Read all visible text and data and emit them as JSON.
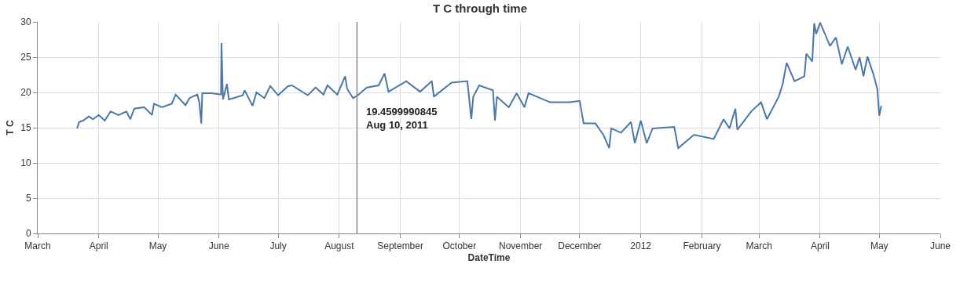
{
  "chart_data": {
    "type": "line",
    "title": "T C through time",
    "xlabel": "DateTime",
    "ylabel": "T C",
    "x": [
      "2011-03-21",
      "2011-03-22",
      "2011-03-24",
      "2011-03-27",
      "2011-03-29",
      "2011-04-01",
      "2011-04-04",
      "2011-04-07",
      "2011-04-11",
      "2011-04-15",
      "2011-04-17",
      "2011-04-19",
      "2011-04-24",
      "2011-04-28",
      "2011-04-29",
      "2011-05-03",
      "2011-05-08",
      "2011-05-10",
      "2011-05-15",
      "2011-05-17",
      "2011-05-21",
      "2011-05-22",
      "2011-05-23",
      "2011-05-23T12:00",
      "2011-05-28",
      "2011-06-02",
      "2011-06-02T06:00",
      "2011-06-03",
      "2011-06-05",
      "2011-06-06",
      "2011-06-13",
      "2011-06-14",
      "2011-06-18",
      "2011-06-20",
      "2011-06-24",
      "2011-06-27",
      "2011-07-01",
      "2011-07-06",
      "2011-07-08",
      "2011-07-16",
      "2011-07-20",
      "2011-07-24",
      "2011-07-26",
      "2011-07-31",
      "2011-08-04",
      "2011-08-05",
      "2011-08-08",
      "2011-08-10",
      "2011-08-15",
      "2011-08-21",
      "2011-08-24",
      "2011-08-26",
      "2011-09-04",
      "2011-09-11",
      "2011-09-17",
      "2011-09-18",
      "2011-09-27",
      "2011-10-05",
      "2011-10-07",
      "2011-10-08",
      "2011-10-11",
      "2011-10-18",
      "2011-10-19",
      "2011-10-20",
      "2011-10-26",
      "2011-10-30",
      "2011-11-03",
      "2011-11-05",
      "2011-11-16",
      "2011-11-26",
      "2011-12-01",
      "2011-12-03",
      "2011-12-09",
      "2011-12-13",
      "2011-12-16",
      "2011-12-17",
      "2011-12-22",
      "2011-12-27",
      "2011-12-29",
      "2012-01-01",
      "2012-01-04",
      "2012-01-07",
      "2012-01-18",
      "2012-01-20",
      "2012-01-28",
      "2012-02-07",
      "2012-02-12",
      "2012-02-15",
      "2012-02-18",
      "2012-02-19",
      "2012-02-26",
      "2012-03-02",
      "2012-03-05",
      "2012-03-11",
      "2012-03-13",
      "2012-03-15",
      "2012-03-19",
      "2012-03-24",
      "2012-03-25",
      "2012-03-28",
      "2012-03-29",
      "2012-03-30",
      "2012-04-01",
      "2012-04-06",
      "2012-04-09",
      "2012-04-12",
      "2012-04-15",
      "2012-04-19",
      "2012-04-21",
      "2012-04-23",
      "2012-04-25",
      "2012-04-28",
      "2012-04-30",
      "2012-05-01",
      "2012-05-02"
    ],
    "values": [
      14.9,
      15.8,
      16.0,
      16.6,
      16.2,
      16.8,
      16.0,
      17.3,
      16.8,
      17.3,
      16.2,
      17.7,
      17.9,
      16.8,
      18.4,
      17.9,
      18.4,
      19.7,
      18.2,
      19.2,
      19.7,
      18.6,
      15.6,
      19.9,
      19.9,
      19.7,
      27.0,
      19.0,
      21.2,
      19.0,
      19.6,
      20.3,
      18.1,
      20.0,
      19.2,
      20.9,
      19.6,
      20.9,
      21.0,
      19.6,
      20.7,
      19.7,
      21.0,
      19.7,
      22.3,
      20.5,
      19.2,
      19.5,
      20.7,
      21.0,
      22.7,
      20.1,
      21.6,
      20.1,
      21.6,
      19.4,
      21.4,
      21.6,
      16.2,
      19.4,
      21.0,
      20.3,
      16.0,
      19.4,
      17.9,
      19.9,
      17.9,
      19.9,
      18.6,
      18.6,
      18.8,
      15.6,
      15.6,
      14.0,
      12.1,
      14.9,
      14.3,
      15.8,
      12.8,
      16.0,
      12.8,
      14.9,
      15.1,
      12.1,
      14.0,
      13.4,
      16.2,
      14.9,
      17.7,
      14.7,
      17.3,
      18.6,
      16.2,
      19.4,
      21.2,
      24.2,
      21.6,
      22.3,
      25.5,
      24.4,
      29.8,
      28.3,
      29.9,
      26.6,
      27.8,
      24.0,
      26.5,
      23.2,
      25.0,
      22.3,
      25.1,
      22.6,
      20.5,
      16.7,
      18.1
    ],
    "color": "#4c78a8",
    "xlim": [
      "2011-03-01",
      "2012-06-01"
    ],
    "xticks": [
      {
        "value": "2011-03-01",
        "label": "March"
      },
      {
        "value": "2011-04-01",
        "label": "April"
      },
      {
        "value": "2011-05-01",
        "label": "May"
      },
      {
        "value": "2011-06-01",
        "label": "June"
      },
      {
        "value": "2011-07-01",
        "label": "July"
      },
      {
        "value": "2011-08-01",
        "label": "August"
      },
      {
        "value": "2011-09-01",
        "label": "September"
      },
      {
        "value": "2011-10-01",
        "label": "October"
      },
      {
        "value": "2011-11-01",
        "label": "November"
      },
      {
        "value": "2011-12-01",
        "label": "December"
      },
      {
        "value": "2012-01-01",
        "label": "2012"
      },
      {
        "value": "2012-02-01",
        "label": "February"
      },
      {
        "value": "2012-03-01",
        "label": "March"
      },
      {
        "value": "2012-04-01",
        "label": "April"
      },
      {
        "value": "2012-05-01",
        "label": "May"
      },
      {
        "value": "2012-06-01",
        "label": "June"
      }
    ],
    "ylim": [
      0,
      30
    ],
    "yticks": [
      0,
      5,
      10,
      15,
      20,
      25,
      30
    ],
    "grid": true,
    "line_style": "solid",
    "ref_lines": [
      {
        "axis": "x",
        "value": "2011-08-10",
        "color": "#888888"
      }
    ],
    "annotations": [
      {
        "text": "19.4599990845\nAug 10, 2011",
        "x": "2011-08-10",
        "y": 19.5
      }
    ]
  }
}
